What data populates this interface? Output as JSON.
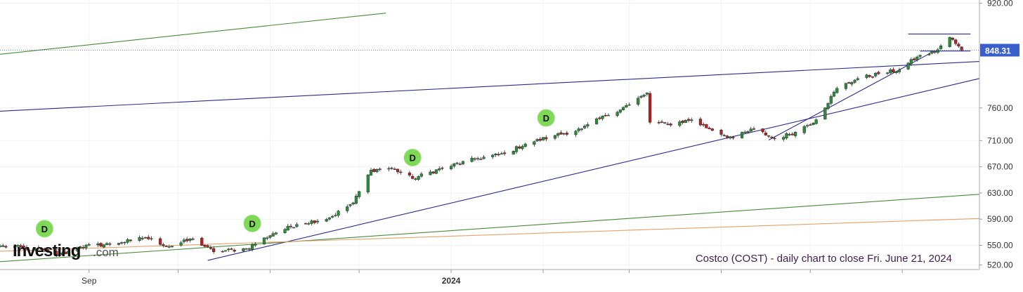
{
  "chart_data": {
    "type": "candlestick",
    "instrument": "Costco (COST)",
    "caption": "Costco (COST) - daily chart to close Fri. June 21, 2024",
    "last_price_label": "848.31",
    "last_price": 848.31,
    "y_ticks": [
      "920.00",
      "760.00",
      "710.00",
      "670.00",
      "630.00",
      "590.00",
      "550.00",
      "520.00"
    ],
    "y_tick_values": [
      920,
      760,
      710,
      670,
      630,
      590,
      550,
      520
    ],
    "ylim": [
      513,
      925
    ],
    "x_labels": [
      "Sep",
      "2024"
    ],
    "x_label_dates": [
      "2023-09-01",
      "2024-01-01"
    ],
    "xlim": [
      "2023-08-02",
      "2024-06-27"
    ],
    "dividend_marker_label": "D",
    "dividend_dates": [
      "2023-08-17",
      "2023-10-26",
      "2023-12-19",
      "2024-02-02"
    ],
    "watermark": {
      "brand": "Investing",
      "suffix": ".com"
    },
    "colors": {
      "up": "#2e8b3e",
      "down": "#b22222",
      "trend_blue": "#2b2b8c",
      "trend_green": "#4a8a3a",
      "trend_orange": "#e3a36b",
      "price_line": "#3a5fcd",
      "price_box": "#3a5fcd",
      "dividend_fill": "#7ed957",
      "caption": "#3b1f4a"
    },
    "trendlines": [
      {
        "name": "green-upper",
        "color": "trend_green",
        "from": [
          "2023-08-02",
          842
        ],
        "to": [
          "2023-12-10",
          905
        ]
      },
      {
        "name": "blue-upper-channel",
        "color": "trend_blue",
        "from": [
          "2023-08-02",
          755
        ],
        "to": [
          "2024-06-27",
          831
        ]
      },
      {
        "name": "blue-lower-support",
        "color": "trend_blue",
        "from": [
          "2023-10-11",
          527
        ],
        "to": [
          "2024-06-27",
          805
        ]
      },
      {
        "name": "blue-short-uptrend",
        "color": "trend_blue",
        "from": [
          "2024-04-17",
          711
        ],
        "to": [
          "2024-06-11",
          845
        ]
      },
      {
        "name": "green-lower",
        "color": "trend_green",
        "from": [
          "2023-08-02",
          525
        ],
        "to": [
          "2024-06-27",
          628
        ]
      },
      {
        "name": "orange-lower",
        "color": "trend_orange",
        "from": [
          "2023-08-02",
          541
        ],
        "to": [
          "2024-06-27",
          591
        ]
      },
      {
        "name": "black-resistance",
        "color": "trend_blue",
        "from": [
          "2024-06-03",
          873
        ],
        "to": [
          "2024-06-24",
          873
        ]
      },
      {
        "name": "black-support",
        "color": "trend_blue",
        "from": [
          "2024-06-07",
          847
        ],
        "to": [
          "2024-06-24",
          847
        ]
      }
    ],
    "anchor_closes": [
      [
        "2023-08-02",
        549
      ],
      [
        "2023-08-14",
        545
      ],
      [
        "2023-08-22",
        535
      ],
      [
        "2023-08-29",
        548
      ],
      [
        "2023-09-08",
        552
      ],
      [
        "2023-09-15",
        557
      ],
      [
        "2023-09-20",
        562
      ],
      [
        "2023-09-28",
        548
      ],
      [
        "2023-10-06",
        560
      ],
      [
        "2023-10-13",
        540
      ],
      [
        "2023-10-24",
        545
      ],
      [
        "2023-11-02",
        568
      ],
      [
        "2023-11-10",
        582
      ],
      [
        "2023-11-21",
        592
      ],
      [
        "2023-11-29",
        615
      ],
      [
        "2023-12-05",
        665
      ],
      [
        "2023-12-12",
        668
      ],
      [
        "2023-12-19",
        652
      ],
      [
        "2023-12-29",
        668
      ],
      [
        "2024-01-10",
        683
      ],
      [
        "2024-01-19",
        690
      ],
      [
        "2024-01-26",
        705
      ],
      [
        "2024-02-05",
        718
      ],
      [
        "2024-02-14",
        728
      ],
      [
        "2024-02-22",
        748
      ],
      [
        "2024-03-01",
        765
      ],
      [
        "2024-03-07",
        783
      ],
      [
        "2024-03-08",
        738
      ],
      [
        "2024-03-14",
        735
      ],
      [
        "2024-03-22",
        742
      ],
      [
        "2024-03-28",
        728
      ],
      [
        "2024-04-05",
        714
      ],
      [
        "2024-04-12",
        728
      ],
      [
        "2024-04-19",
        713
      ],
      [
        "2024-04-26",
        723
      ],
      [
        "2024-05-03",
        742
      ],
      [
        "2024-05-10",
        790
      ],
      [
        "2024-05-17",
        805
      ],
      [
        "2024-05-24",
        812
      ],
      [
        "2024-05-31",
        818
      ],
      [
        "2024-06-06",
        838
      ],
      [
        "2024-06-12",
        846
      ],
      [
        "2024-06-17",
        868
      ],
      [
        "2024-06-21",
        848.31
      ]
    ]
  }
}
